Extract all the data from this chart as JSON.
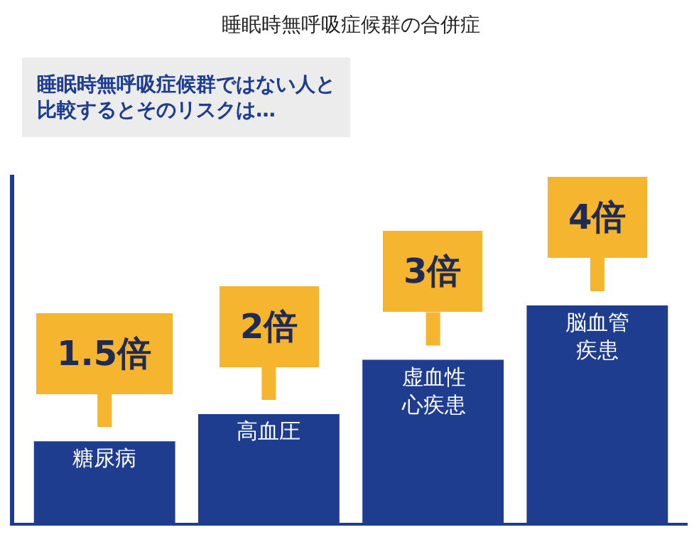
{
  "chart_data": {
    "type": "bar",
    "title": "睡眠時無呼吸症候群の合併症",
    "subtitle": "睡眠時無呼吸症候群ではない人と比較するとそのリスクは…",
    "categories": [
      "糖尿病",
      "高血圧",
      "虚血性心疾患",
      "脳血管疾患"
    ],
    "values": [
      1.5,
      2,
      3,
      4
    ],
    "value_labels": [
      "1.5倍",
      "2倍",
      "3倍",
      "4倍"
    ],
    "color": "#1f3d8f"
  }
}
